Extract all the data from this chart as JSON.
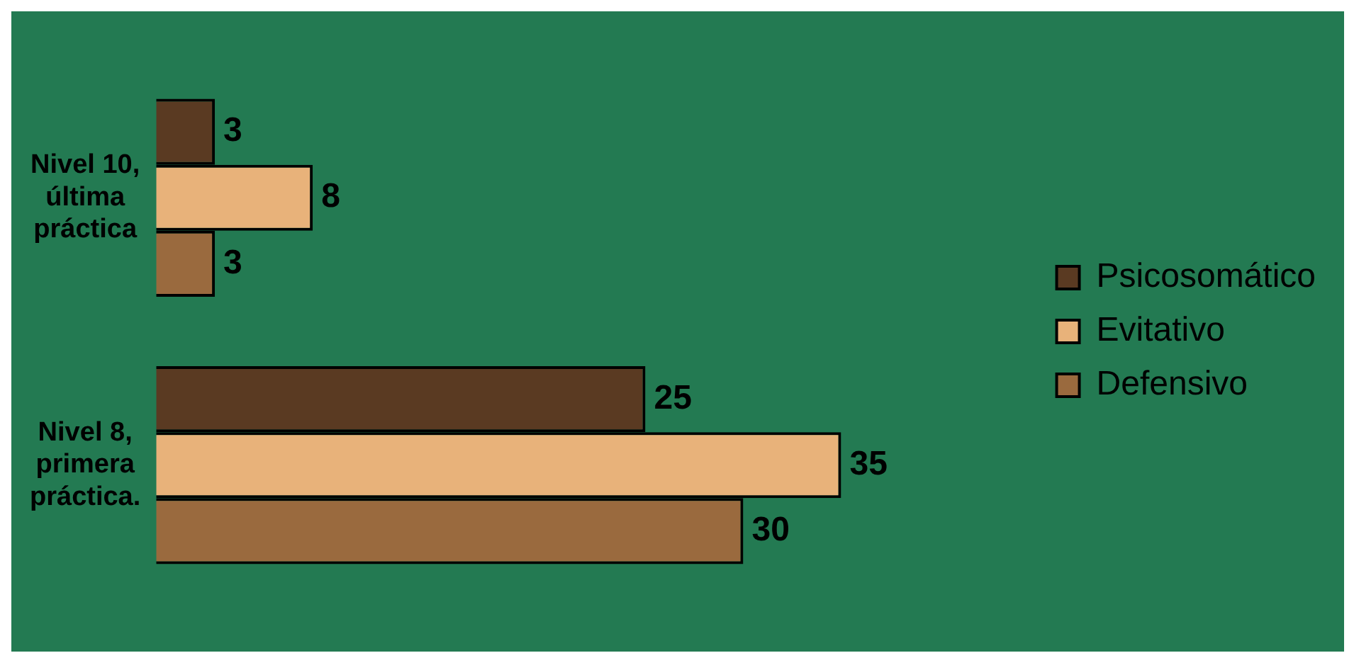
{
  "chart_data": {
    "type": "bar",
    "orientation": "horizontal",
    "categories": [
      "Nivel 10, última práctica",
      "Nivel 8, primera práctica."
    ],
    "series": [
      {
        "name": "Psicosomático",
        "color": "#5a3a22",
        "values": [
          3,
          25
        ]
      },
      {
        "name": "Evitativo",
        "color": "#e8b27a",
        "values": [
          8,
          35
        ]
      },
      {
        "name": "Defensivo",
        "color": "#9a6a3e",
        "values": [
          3,
          30
        ]
      }
    ],
    "tick_labels": "y",
    "data_labels": true,
    "grid": false,
    "legend": "right"
  }
}
